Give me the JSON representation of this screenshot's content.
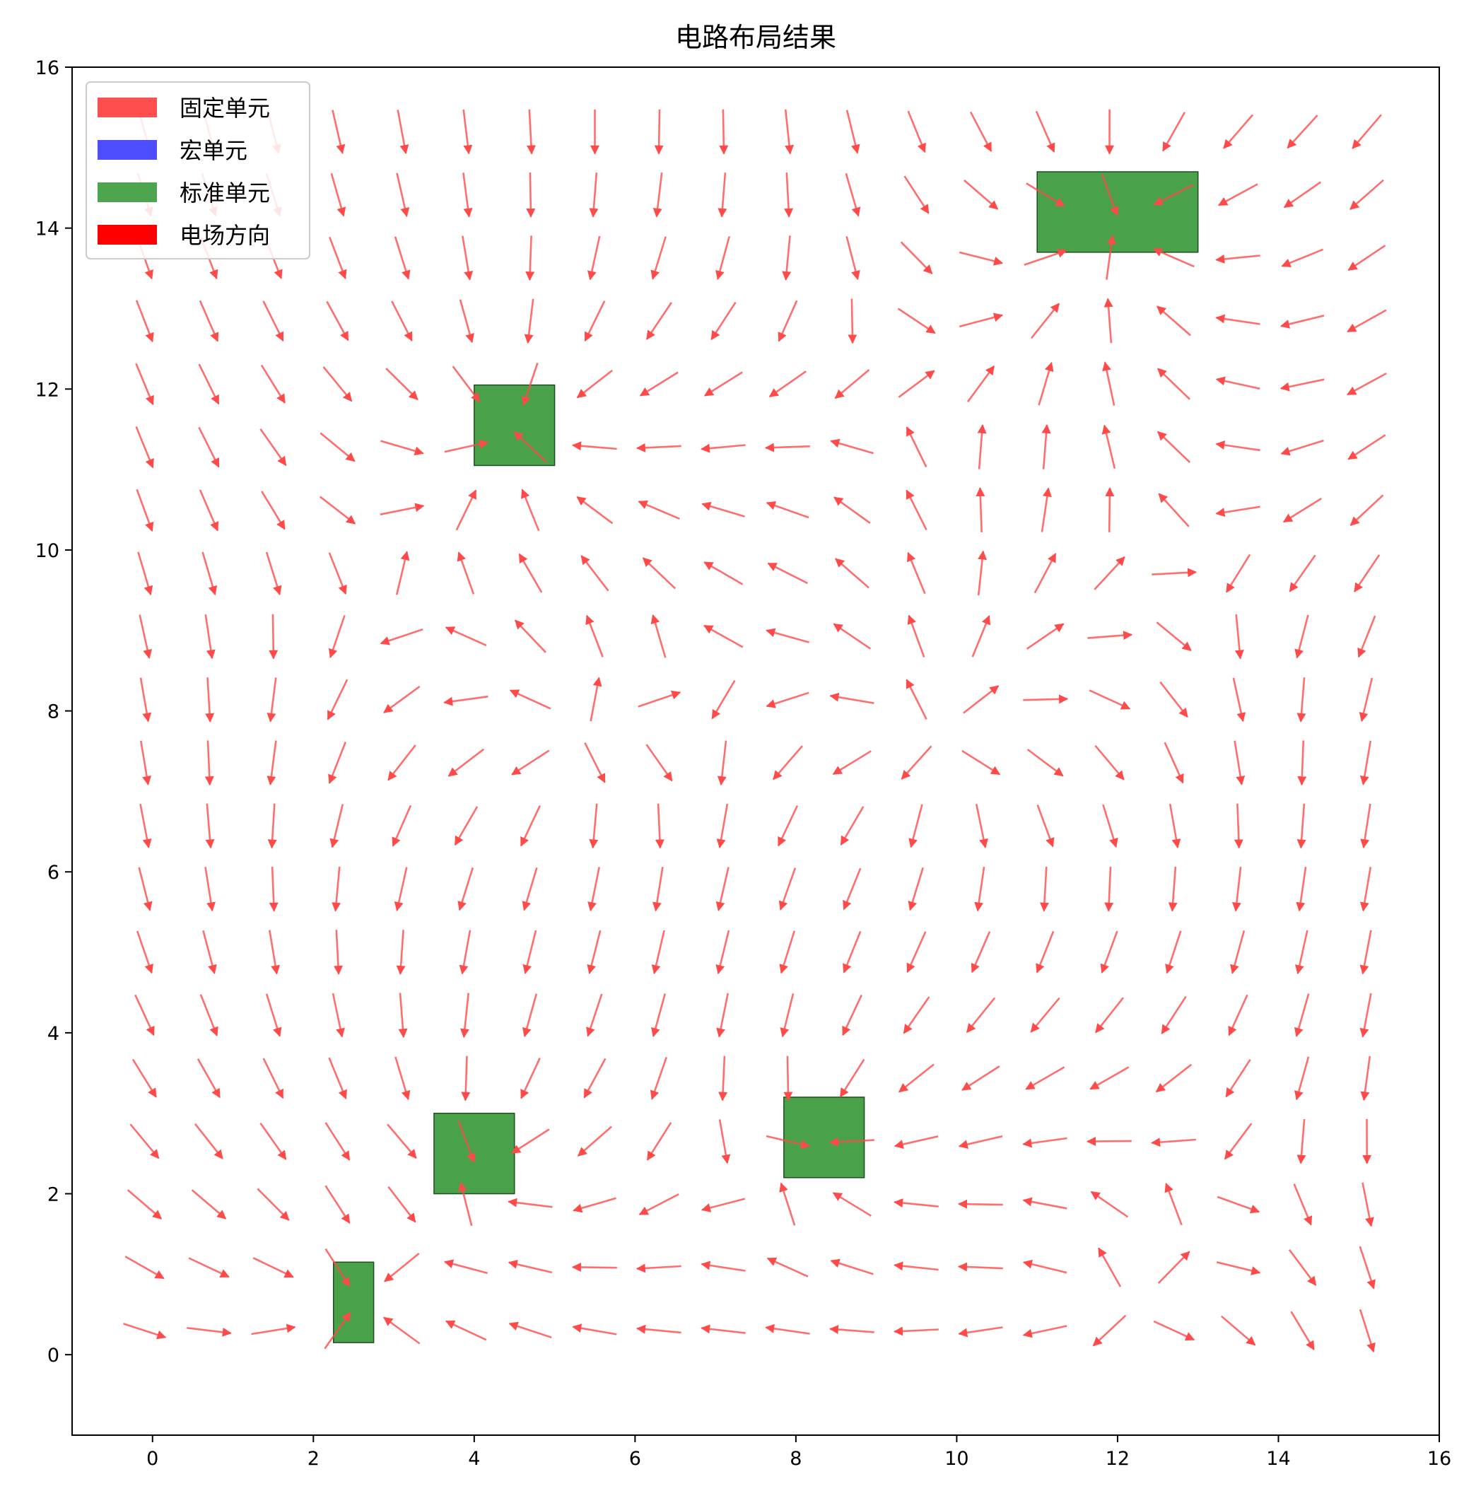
{
  "chart_data": {
    "type": "quiver",
    "title": "电路布局结果",
    "xlabel": "",
    "ylabel": "",
    "xlim": [
      -1,
      16
    ],
    "ylim": [
      -1,
      16
    ],
    "xticks": [
      "0",
      "2",
      "4",
      "6",
      "8",
      "10",
      "12",
      "14",
      "16"
    ],
    "yticks": [
      "0",
      "2",
      "4",
      "6",
      "8",
      "10",
      "12",
      "14",
      "16"
    ],
    "grid": false,
    "legend_position": "upper-left",
    "legend": [
      {
        "label": "固定单元",
        "color": "#ff4444",
        "kind": "patch"
      },
      {
        "label": "宏单元",
        "color": "#4444ff",
        "kind": "patch"
      },
      {
        "label": "标准单元",
        "color": "#44a044",
        "kind": "patch"
      },
      {
        "label": "电场方向",
        "color": "#ff0000",
        "kind": "arrow"
      }
    ],
    "cells": [
      {
        "type": "标准单元",
        "x": 11,
        "y": 13.7,
        "w": 2,
        "h": 1
      },
      {
        "type": "标准单元",
        "x": 4,
        "y": 11.05,
        "w": 1,
        "h": 1
      },
      {
        "type": "标准单元",
        "x": 3.5,
        "y": 2,
        "w": 1,
        "h": 1
      },
      {
        "type": "标准单元",
        "x": 7.85,
        "y": 2.2,
        "w": 1,
        "h": 1
      },
      {
        "type": "标准单元",
        "x": 2.25,
        "y": 0.15,
        "w": 0.5,
        "h": 1
      }
    ],
    "field": {
      "x_range": [
        -0.1,
        15.1
      ],
      "y_range": [
        0.3,
        15.2
      ],
      "grid_n": 20,
      "sources": [
        [
          9.7,
          7.55
        ],
        [
          5.3,
          7.6
        ],
        [
          12,
          0.4
        ]
      ],
      "sinks": [
        [
          12,
          14.2
        ],
        [
          4.5,
          11.5
        ],
        [
          4,
          2.5
        ],
        [
          8.35,
          2.7
        ],
        [
          2.5,
          0.65
        ]
      ],
      "uniform_down": 1.0,
      "arrow_length": 0.55
    },
    "colors": {
      "cell_fill": "#3a9a3a",
      "arrow": "#ff4a4a"
    }
  }
}
